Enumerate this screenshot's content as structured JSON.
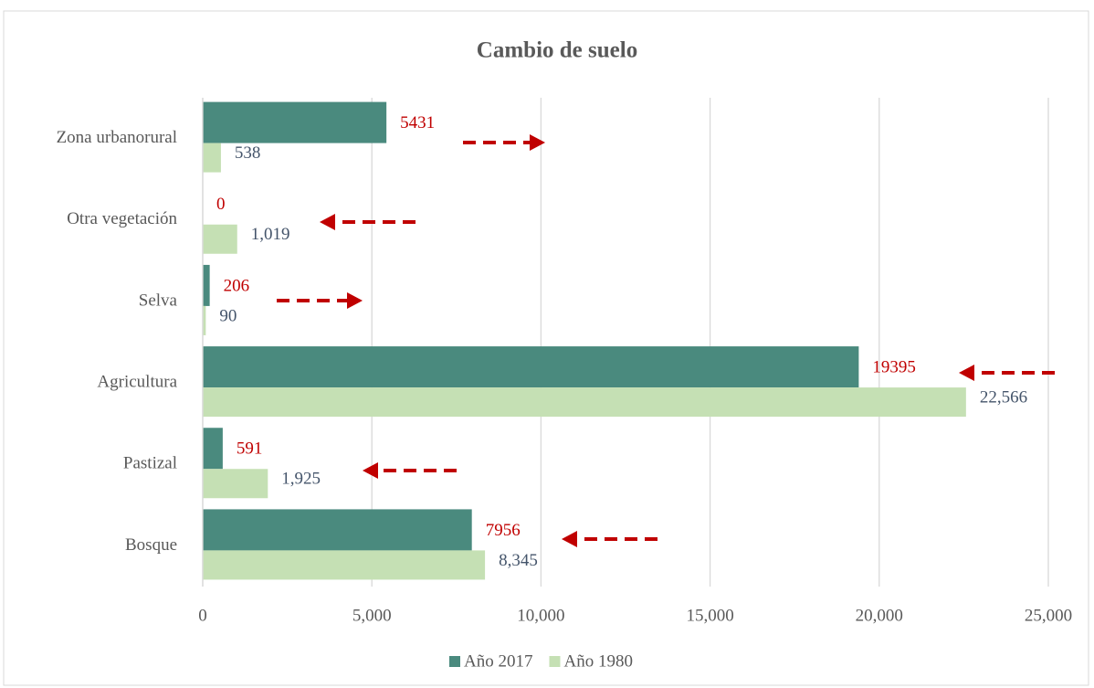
{
  "chart_data": {
    "type": "barh",
    "title": "Cambio de suelo",
    "categories": [
      "Zona urbanorural",
      "Otra vegetación",
      "Selva",
      "Agricultura",
      "Pastizal",
      "Bosque"
    ],
    "series": [
      {
        "name": "Año 2017",
        "color": "#4a8a7e",
        "label_color": "#c00000",
        "values": [
          5431,
          0,
          206,
          19395,
          591,
          7956
        ]
      },
      {
        "name": "Año 1980",
        "color": "#c5e0b4",
        "label_color": "#44546a",
        "values": [
          538,
          1019,
          90,
          22566,
          1925,
          8345
        ],
        "value_labels": [
          "538",
          "1,019",
          "90",
          "22,566",
          "1,925",
          "8,345"
        ]
      }
    ],
    "xlim": [
      0,
      25000
    ],
    "xticks": [
      0,
      {
        "value": 5000,
        "label": "5,000"
      },
      {
        "value": 10000,
        "label": "10,000"
      },
      {
        "value": 15000,
        "label": "15,000"
      },
      {
        "value": 20000,
        "label": "20,000"
      },
      {
        "value": 25000,
        "label": "25,000"
      }
    ],
    "grid": true,
    "legend": "bottom"
  }
}
